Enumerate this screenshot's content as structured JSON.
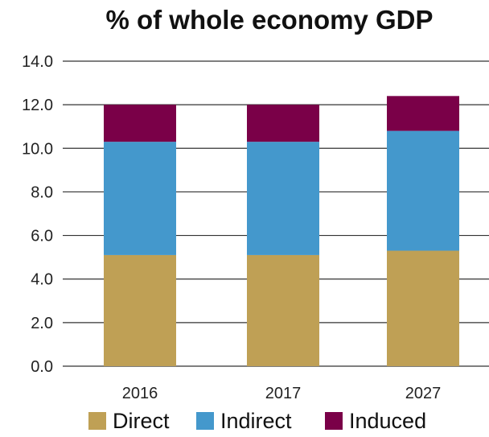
{
  "chart_data": {
    "type": "bar",
    "stacked": true,
    "title": "% of whole economy GDP",
    "xlabel": "",
    "ylabel": "",
    "categories": [
      "2016",
      "2017",
      "2027"
    ],
    "series": [
      {
        "name": "Direct",
        "color": "#BFA055",
        "values": [
          5.1,
          5.1,
          5.3
        ]
      },
      {
        "name": "Indirect",
        "color": "#4498CC",
        "values": [
          5.2,
          5.2,
          5.5
        ]
      },
      {
        "name": "Induced",
        "color": "#7A0048",
        "values": [
          1.7,
          1.7,
          1.6
        ]
      }
    ],
    "ylim": [
      0,
      14
    ],
    "yticks": [
      "0.0",
      "2.0",
      "4.0",
      "6.0",
      "8.0",
      "10.0",
      "12.0",
      "14.0"
    ],
    "grid": true,
    "legend": "bottom"
  }
}
